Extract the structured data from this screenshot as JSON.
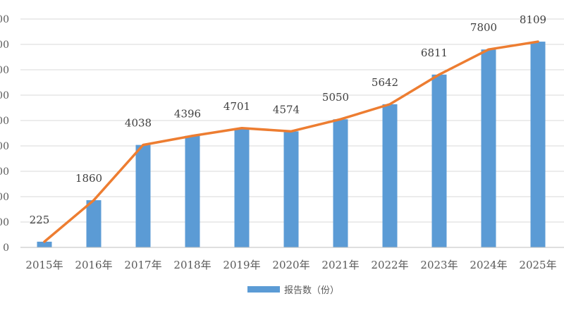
{
  "chart_data": {
    "type": "bar",
    "categories": [
      "2015年",
      "2016年",
      "2017年",
      "2018年",
      "2019年",
      "2020年",
      "2021年",
      "2022年",
      "2023年",
      "2024年",
      "2025年"
    ],
    "series": [
      {
        "name": "报告数（份）",
        "values": [
          225,
          1860,
          4038,
          4396,
          4701,
          4574,
          5050,
          5642,
          6811,
          7800,
          8109
        ],
        "color": "#5B9BD5",
        "render": "bar"
      },
      {
        "values": [
          225,
          1860,
          4038,
          4396,
          4701,
          4574,
          5050,
          5642,
          6811,
          7800,
          8109
        ],
        "color": "#ED7D31",
        "render": "line"
      }
    ],
    "data_labels": [
      "225",
      "1860",
      "4038",
      "4396",
      "4701",
      "4574",
      "5050",
      "5642",
      "6811",
      "7800",
      "8109"
    ],
    "y_tick_labels": [
      "0",
      "00",
      "00",
      "00",
      "00",
      "00",
      "00",
      "00",
      "00",
      "00"
    ],
    "ylim": [
      0,
      9000
    ],
    "grid": true,
    "legend_placement": "bottom"
  },
  "legend": {
    "label": "报告数（份）"
  }
}
